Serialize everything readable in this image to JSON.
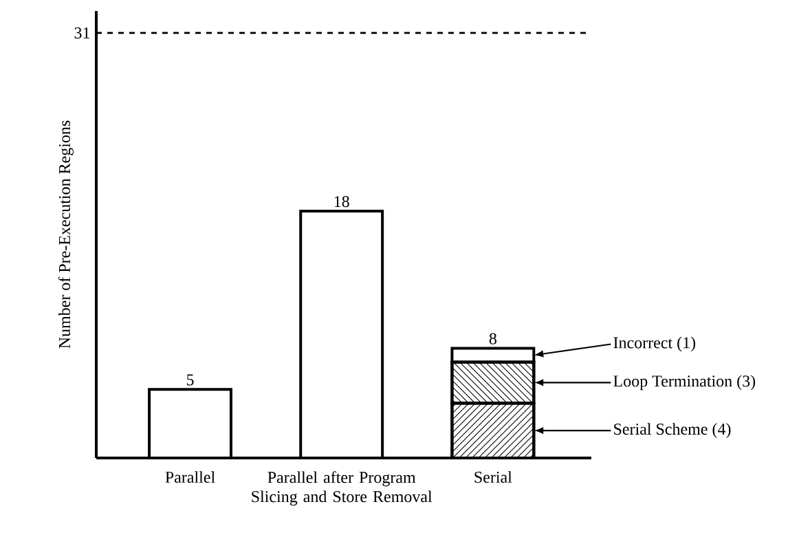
{
  "chart_data": {
    "type": "bar",
    "stacked": true,
    "ylabel": "Number of Pre-Execution Regions",
    "categories": [
      "Parallel",
      "Parallel after Program Slicing and Store Removal",
      "Serial"
    ],
    "series": [
      {
        "color": "#ffffff",
        "values": [
          5,
          18,
          null
        ]
      },
      {
        "name": "Serial Scheme (4)",
        "color": "#ffffff",
        "values": [
          null,
          null,
          4
        ]
      },
      {
        "name": "Loop Termination (3)",
        "color": "#ffffff",
        "values": [
          null,
          null,
          3
        ]
      },
      {
        "name": "Incorrect (1)",
        "color": "#ffffff",
        "values": [
          null,
          null,
          1
        ]
      }
    ],
    "totals": [
      "5",
      "18",
      "8"
    ],
    "legend": "right",
    "ylim": [
      0,
      32.6
    ],
    "yticks": [
      31
    ],
    "ref_lines": [
      {
        "axis": "y",
        "value": 31,
        "line_style": "dashed"
      }
    ]
  }
}
